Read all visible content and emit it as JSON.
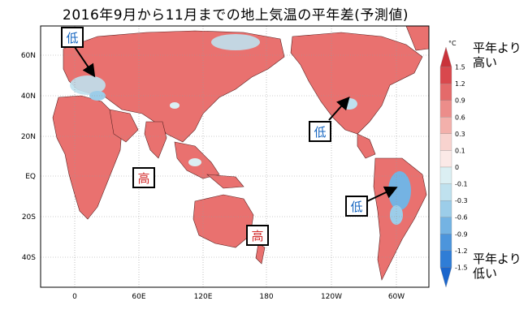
{
  "title": "2016年9月から11月までの地上気温の平年差(予測値)",
  "map": {
    "lat_ticks": [
      "60N",
      "40N",
      "20N",
      "EQ",
      "20S",
      "40S"
    ],
    "lon_ticks": [
      "0",
      "60E",
      "120E",
      "180",
      "120W",
      "60W"
    ]
  },
  "annotations": [
    {
      "text": "低",
      "color": "#1565c0"
    },
    {
      "text": "低",
      "color": "#1565c0"
    },
    {
      "text": "低",
      "color": "#1565c0"
    },
    {
      "text": "高",
      "color": "#d32f2f"
    },
    {
      "text": "高",
      "color": "#d32f2f"
    }
  ],
  "colorbar": {
    "unit": "°C",
    "labels": [
      "1.5",
      "1.2",
      "0.9",
      "0.6",
      "0.3",
      "0.1",
      "0",
      "-0.1",
      "-0.3",
      "-0.6",
      "-0.9",
      "-1.2",
      "-1.5"
    ],
    "colors": [
      "#c9333a",
      "#d9484d",
      "#e46a6a",
      "#ec8d8a",
      "#f3b0ab",
      "#f8d3cf",
      "#fbe9e7",
      "#dbeff3",
      "#bfe1ee",
      "#9ccde9",
      "#74b3e3",
      "#4c95dc",
      "#2f7dd6",
      "#1b66cc"
    ],
    "high_label": "平年より高い",
    "low_label": "平年より低い"
  }
}
